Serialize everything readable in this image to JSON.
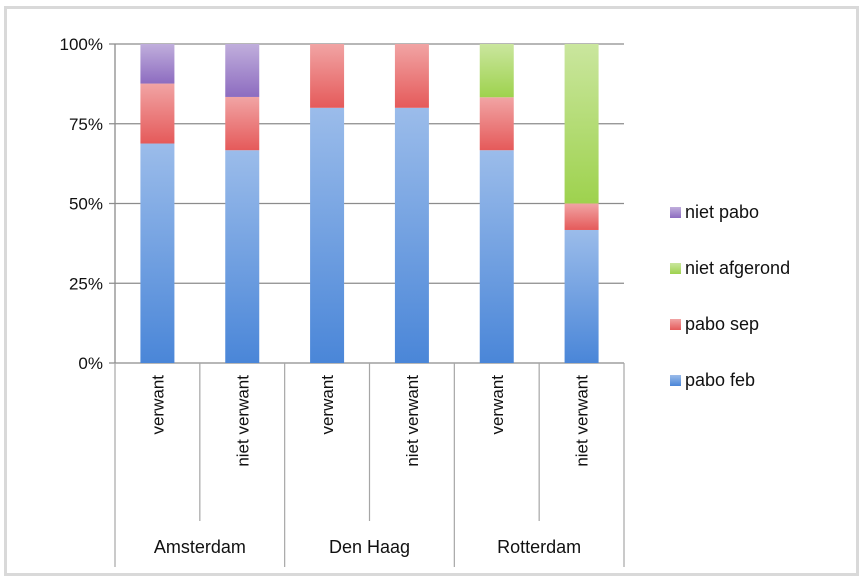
{
  "chart_data": {
    "type": "bar",
    "stacked": true,
    "percent_stacked": true,
    "y_ticks": [
      "0%",
      "25%",
      "50%",
      "75%",
      "100%"
    ],
    "ylim": [
      0,
      100
    ],
    "grid": true,
    "legend_position": "right",
    "groups": [
      {
        "label": "Amsterdam",
        "categories": [
          "verwant",
          "niet verwant"
        ]
      },
      {
        "label": "Den Haag",
        "categories": [
          "verwant",
          "niet verwant"
        ]
      },
      {
        "label": "Rotterdam",
        "categories": [
          "verwant",
          "niet verwant"
        ]
      }
    ],
    "categories": [
      "verwant",
      "niet verwant",
      "verwant",
      "niet verwant",
      "verwant",
      "niet verwant"
    ],
    "series": [
      {
        "name": "pabo feb",
        "color": "#4a86d8",
        "values": [
          68.8,
          66.7,
          80,
          80,
          66.7,
          41.7
        ]
      },
      {
        "name": "pabo sep",
        "color": "#e55a5a",
        "values": [
          18.8,
          16.7,
          20,
          20,
          16.6,
          8.3
        ]
      },
      {
        "name": "niet afgerond",
        "color": "#9ed24e",
        "values": [
          0,
          0,
          0,
          0,
          16.7,
          50
        ]
      },
      {
        "name": "niet pabo",
        "color": "#8d6cc0",
        "values": [
          12.4,
          16.6,
          0,
          0,
          0,
          0
        ]
      }
    ],
    "legend_order": [
      "niet pabo",
      "niet afgerond",
      "pabo sep",
      "pabo feb"
    ]
  }
}
